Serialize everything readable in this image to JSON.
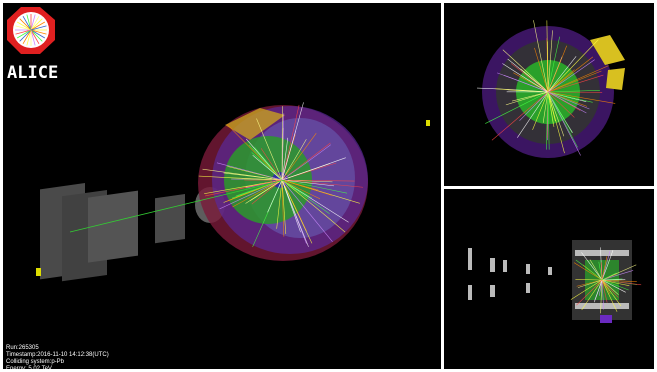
{
  "logo": {
    "text": "ALICE"
  },
  "info": {
    "lines": [
      "Run:265305",
      "Timestamp:2016-11-10 14:12:38(UTC)",
      "Colliding system:p-Pb",
      "Energy: 5.02 TeV"
    ]
  }
}
